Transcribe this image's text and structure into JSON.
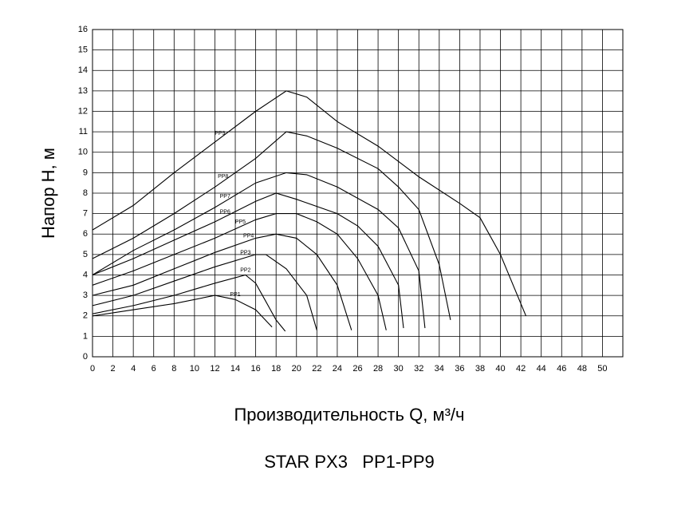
{
  "chart_data": {
    "type": "line",
    "title": "STAR PX3   PP1-PP9",
    "x_label": "Производительность Q, м³/ч",
    "y_label": "Напор H, м",
    "xlim": [
      0,
      52
    ],
    "ylim": [
      0,
      16
    ],
    "xticks": [
      0,
      2,
      4,
      6,
      8,
      10,
      12,
      14,
      16,
      18,
      20,
      22,
      24,
      26,
      28,
      30,
      32,
      34,
      36,
      38,
      40,
      42,
      44,
      46,
      48,
      50
    ],
    "yticks": [
      0,
      1,
      2,
      3,
      4,
      5,
      6,
      7,
      8,
      9,
      10,
      11,
      12,
      13,
      14,
      15,
      16
    ],
    "grid": true,
    "series": [
      {
        "name": "PP1",
        "color": "#000000",
        "x": [
          0,
          4,
          8,
          12,
          14,
          16,
          17.6
        ],
        "values": [
          2.0,
          2.3,
          2.6,
          3.0,
          2.8,
          2.3,
          1.45
        ]
      },
      {
        "name": "PP2",
        "color": "#000000",
        "x": [
          0,
          4,
          8,
          12,
          15,
          16,
          17,
          18,
          18.9
        ],
        "values": [
          2.1,
          2.5,
          3.0,
          3.6,
          4.0,
          3.6,
          2.7,
          1.8,
          1.25
        ]
      },
      {
        "name": "PP3",
        "color": "#000000",
        "x": [
          0,
          4,
          8,
          12,
          16,
          17,
          19,
          21,
          22
        ],
        "values": [
          2.5,
          3.0,
          3.7,
          4.4,
          5.0,
          5.0,
          4.3,
          3.0,
          1.3
        ]
      },
      {
        "name": "PP4",
        "color": "#000000",
        "x": [
          0,
          4,
          8,
          12,
          16,
          18,
          20,
          22,
          24,
          25.4
        ],
        "values": [
          3.0,
          3.5,
          4.3,
          5.1,
          5.8,
          6.0,
          5.8,
          5.0,
          3.5,
          1.3
        ]
      },
      {
        "name": "PP5",
        "color": "#000000",
        "x": [
          0,
          4,
          8,
          12,
          16,
          18,
          20,
          22,
          24,
          26,
          28,
          28.8
        ],
        "values": [
          3.5,
          4.2,
          5.0,
          5.8,
          6.7,
          7.0,
          7.0,
          6.6,
          6.0,
          4.8,
          3.0,
          1.3
        ]
      },
      {
        "name": "PP6",
        "color": "#000000",
        "x": [
          0,
          4,
          8,
          12,
          16,
          18,
          20,
          24,
          26,
          28,
          30,
          30.5
        ],
        "values": [
          4.0,
          4.8,
          5.7,
          6.6,
          7.6,
          8.0,
          7.7,
          7.0,
          6.4,
          5.4,
          3.5,
          1.4
        ]
      },
      {
        "name": "PP7",
        "color": "#000000",
        "x": [
          0,
          4,
          8,
          12,
          16,
          19,
          21,
          24,
          28,
          30,
          32,
          32.6
        ],
        "values": [
          4.0,
          5.2,
          6.2,
          7.3,
          8.5,
          9.0,
          8.9,
          8.3,
          7.2,
          6.3,
          4.2,
          1.4
        ]
      },
      {
        "name": "PP8",
        "color": "#000000",
        "x": [
          0,
          4,
          8,
          12,
          16,
          19,
          21,
          24,
          28,
          30,
          32,
          34,
          35.1
        ],
        "values": [
          4.8,
          5.8,
          7.0,
          8.3,
          9.7,
          11.0,
          10.8,
          10.2,
          9.2,
          8.3,
          7.2,
          4.5,
          1.8
        ]
      },
      {
        "name": "PP9",
        "color": "#000000",
        "x": [
          0,
          4,
          8,
          12,
          16,
          19,
          21,
          24,
          28,
          32,
          36,
          38,
          40,
          42.5
        ],
        "values": [
          6.2,
          7.4,
          9.0,
          10.5,
          12.0,
          13.0,
          12.7,
          11.5,
          10.3,
          8.8,
          7.5,
          6.8,
          5.0,
          2.0
        ]
      }
    ]
  }
}
